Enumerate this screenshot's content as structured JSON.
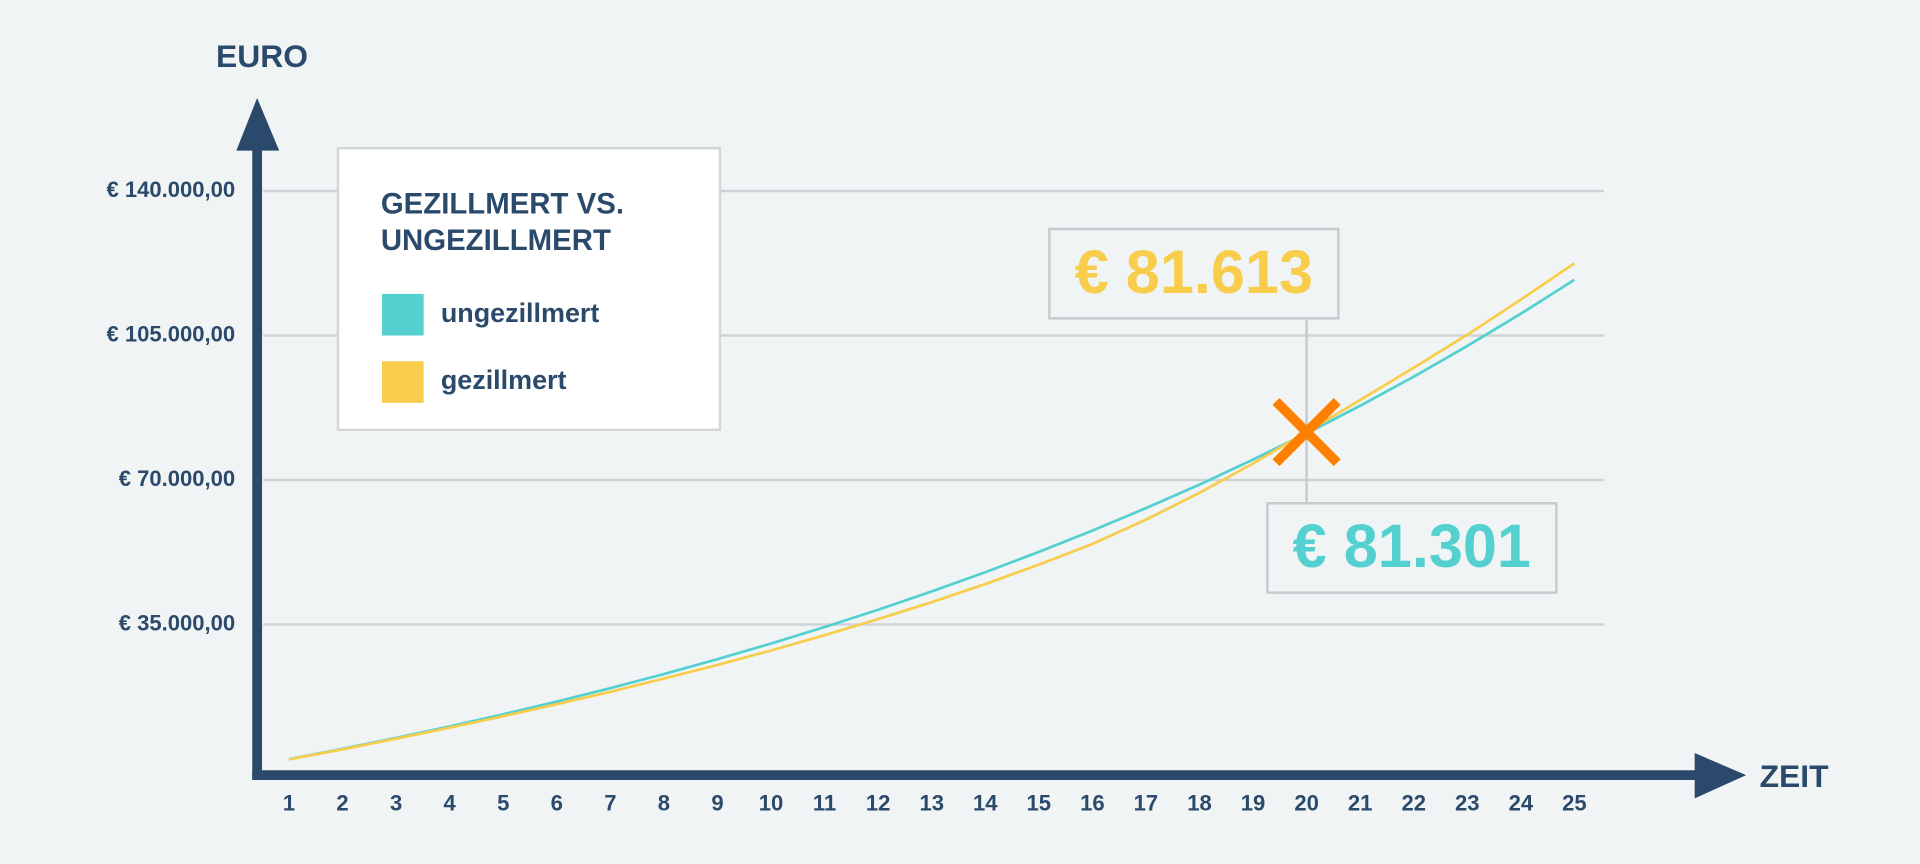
{
  "chart_data": {
    "type": "line",
    "y_axis_label": "EURO",
    "x_axis_label": "ZEIT",
    "legend_title": [
      "GEZILLMERT VS.",
      "UNGEZILLMERT"
    ],
    "x": [
      1,
      2,
      3,
      4,
      5,
      6,
      7,
      8,
      9,
      10,
      11,
      12,
      13,
      14,
      15,
      16,
      17,
      18,
      19,
      20,
      21,
      22,
      23,
      24,
      25
    ],
    "xlim": [
      0.4,
      28
    ],
    "ylim": [
      0,
      150000
    ],
    "yticks": [
      {
        "value": 35000,
        "label": "€ 35.000,00"
      },
      {
        "value": 70000,
        "label": "€ 70.000,00"
      },
      {
        "value": 105000,
        "label": "€ 105.000,00"
      },
      {
        "value": 140000,
        "label": "€ 140.000,00"
      }
    ],
    "grid": true,
    "series": [
      {
        "name": "ungezillmert",
        "color": "#55d0d0",
        "values": [
          2382,
          4890,
          7532,
          10314,
          13242,
          16324,
          19578,
          22993,
          26593,
          30382,
          34377,
          38578,
          43002,
          47650,
          52576,
          57745,
          63185,
          68891,
          74950,
          81301,
          87987,
          95042,
          102470,
          110283,
          118500
        ]
      },
      {
        "name": "gezillmert",
        "color": "#f7cd4b",
        "values": [
          2300,
          4750,
          7350,
          10000,
          12800,
          15700,
          18700,
          21900,
          25200,
          28700,
          32400,
          36300,
          40400,
          44800,
          49500,
          54500,
          60400,
          66900,
          74000,
          81613,
          89400,
          97200,
          105200,
          113700,
          122500
        ]
      }
    ],
    "annotations": [
      {
        "x": 20,
        "value": 81613,
        "label": "€ 81.613",
        "color": "#f7cd4b"
      },
      {
        "x": 20,
        "value": 81301,
        "label": "€ 81.301",
        "color": "#55d0d0"
      }
    ],
    "marker_color": "#ff8000",
    "axis_color": "#2b4a6b"
  }
}
